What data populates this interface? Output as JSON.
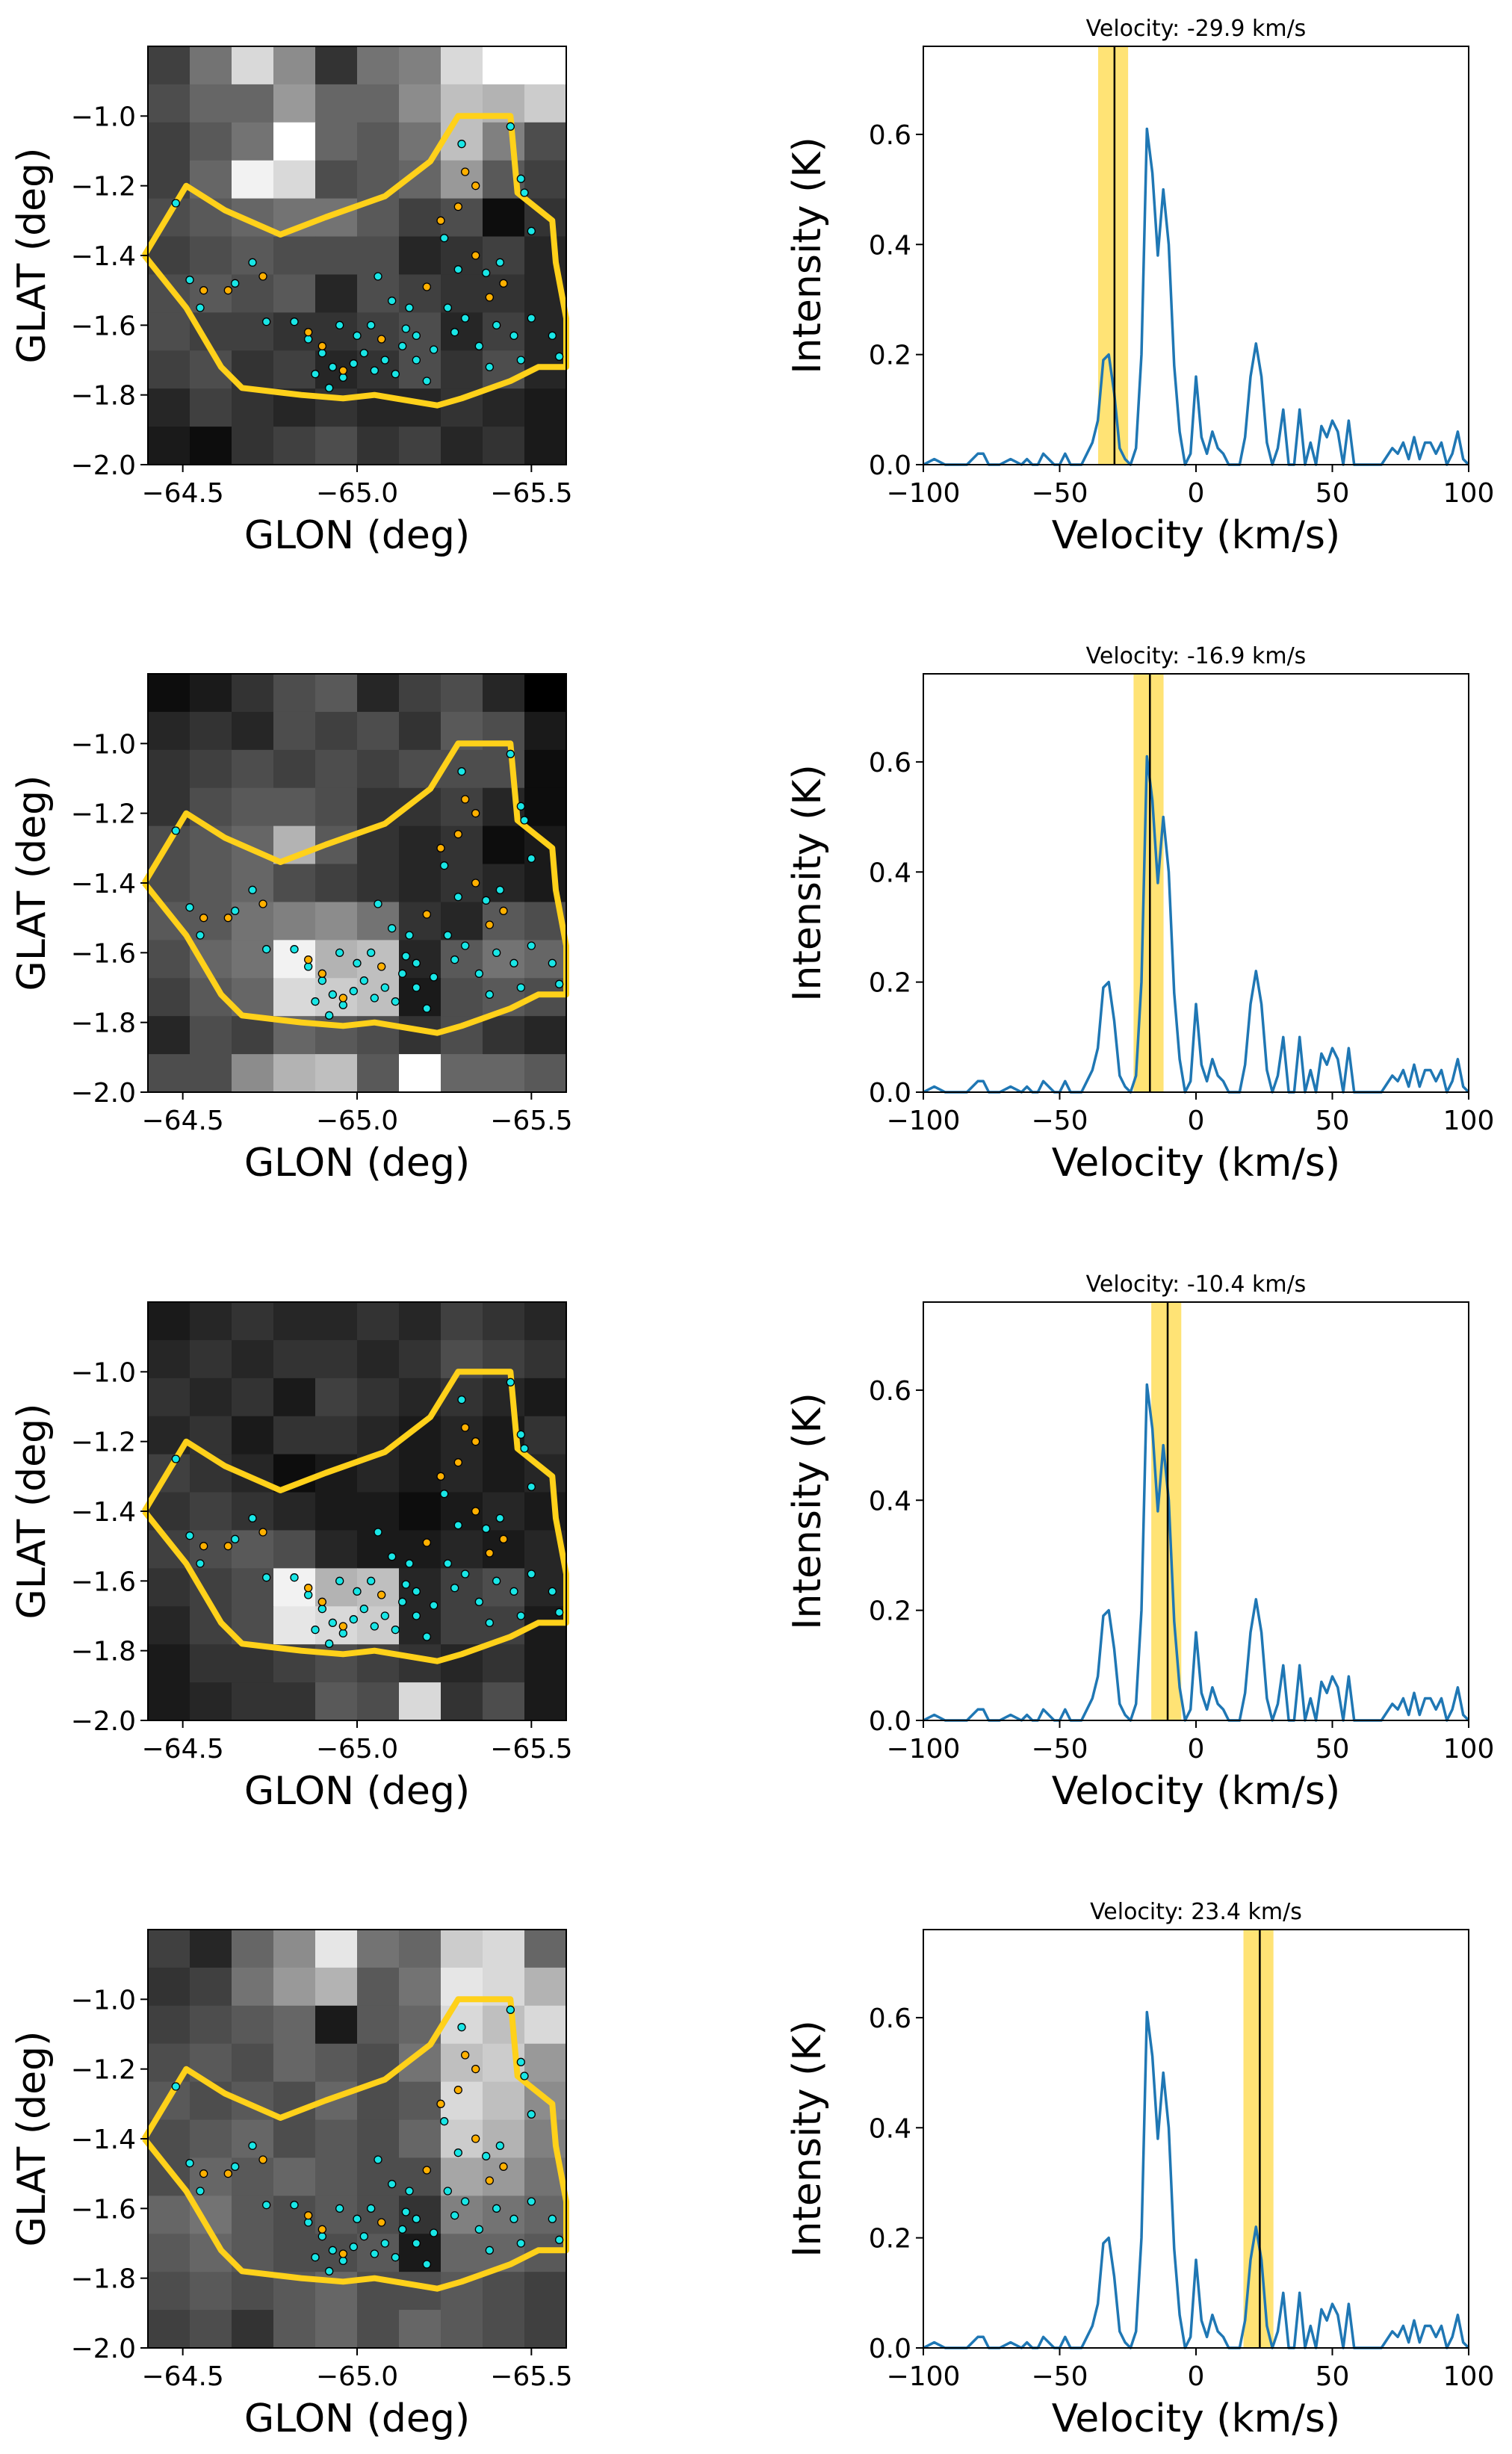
{
  "colors": {
    "spectrum_line": "#1f77b4",
    "velocity_band": "#ffe066",
    "velocity_line": "#000000",
    "contour": "#ffd11a",
    "source_cyan": "#19e6e6",
    "source_orange": "#ffb000",
    "source_edge": "#000000"
  },
  "chart_data": [
    {
      "type": "heatmap",
      "panel": "map",
      "xlabel": "GLON (deg)",
      "ylabel": "GLAT (deg)",
      "xlim": [
        -64.4,
        -65.6
      ],
      "ylim": [
        -2.0,
        -0.8
      ],
      "xticks": [
        -64.5,
        -65.0,
        -65.5
      ],
      "xtick_labels": [
        "−64.5",
        "−65.0",
        "−65.5"
      ],
      "yticks": [
        -1.0,
        -1.2,
        -1.4,
        -1.6,
        -1.8,
        -2.0
      ],
      "ytick_labels": [
        "−1.0",
        "−1.2",
        "−1.4",
        "−1.6",
        "−1.8",
        "−2.0"
      ],
      "grid": [
        [
          0.25,
          0.45,
          0.85,
          0.55,
          0.2,
          0.45,
          0.5,
          0.85,
          1.0,
          1.0
        ],
        [
          0.3,
          0.4,
          0.4,
          0.6,
          0.4,
          0.4,
          0.55,
          0.75,
          0.7,
          0.8
        ],
        [
          0.25,
          0.35,
          0.45,
          1.0,
          0.4,
          0.35,
          0.45,
          0.75,
          0.5,
          0.3
        ],
        [
          0.25,
          0.4,
          0.95,
          0.85,
          0.3,
          0.35,
          0.4,
          0.6,
          0.35,
          0.25
        ],
        [
          0.3,
          0.35,
          0.4,
          0.45,
          0.45,
          0.35,
          0.25,
          0.3,
          0.05,
          0.2
        ],
        [
          0.25,
          0.3,
          0.35,
          0.3,
          0.3,
          0.3,
          0.15,
          0.2,
          0.25,
          0.15
        ],
        [
          0.3,
          0.35,
          0.3,
          0.35,
          0.15,
          0.3,
          0.25,
          0.2,
          0.2,
          0.15
        ],
        [
          0.3,
          0.25,
          0.25,
          0.2,
          0.2,
          0.25,
          0.3,
          0.15,
          0.25,
          0.15
        ],
        [
          0.25,
          0.3,
          0.2,
          0.25,
          0.15,
          0.2,
          0.3,
          0.2,
          0.3,
          0.15
        ],
        [
          0.15,
          0.25,
          0.2,
          0.15,
          0.2,
          0.15,
          0.15,
          0.2,
          0.15,
          0.1
        ],
        [
          0.1,
          0.05,
          0.2,
          0.25,
          0.3,
          0.2,
          0.25,
          0.15,
          0.2,
          0.1
        ]
      ]
    },
    {
      "type": "line",
      "panel": "spectrum",
      "title": "Velocity: -29.9 km/s",
      "velocity": -29.9,
      "band": [
        -35.9,
        -24.9
      ],
      "xlabel": "Velocity (km/s)",
      "ylabel": "Intensity (K)",
      "xlim": [
        -100,
        100
      ],
      "ylim": [
        0,
        0.76
      ],
      "xticks": [
        -100,
        -50,
        0,
        50,
        100
      ],
      "xtick_labels": [
        "−100",
        "−50",
        "0",
        "50",
        "100"
      ],
      "yticks": [
        0.0,
        0.2,
        0.4,
        0.6
      ],
      "ytick_labels": [
        "0.0",
        "0.2",
        "0.4",
        "0.6"
      ]
    },
    {
      "type": "heatmap",
      "panel": "map",
      "xlabel": "GLON (deg)",
      "ylabel": "GLAT (deg)",
      "xlim": [
        -64.4,
        -65.6
      ],
      "ylim": [
        -2.0,
        -0.8
      ],
      "xticks": [
        -64.5,
        -65.0,
        -65.5
      ],
      "xtick_labels": [
        "−64.5",
        "−65.0",
        "−65.5"
      ],
      "yticks": [
        -1.0,
        -1.2,
        -1.4,
        -1.6,
        -1.8,
        -2.0
      ],
      "ytick_labels": [
        "−1.0",
        "−1.2",
        "−1.4",
        "−1.6",
        "−1.8",
        "−2.0"
      ],
      "grid": [
        [
          0.05,
          0.1,
          0.2,
          0.3,
          0.35,
          0.15,
          0.25,
          0.3,
          0.15,
          0.0
        ],
        [
          0.15,
          0.2,
          0.15,
          0.3,
          0.25,
          0.3,
          0.2,
          0.35,
          0.3,
          0.1
        ],
        [
          0.2,
          0.25,
          0.3,
          0.25,
          0.3,
          0.25,
          0.3,
          0.3,
          0.3,
          0.05
        ],
        [
          0.2,
          0.3,
          0.35,
          0.35,
          0.3,
          0.2,
          0.2,
          0.25,
          0.15,
          0.05
        ],
        [
          0.3,
          0.35,
          0.4,
          0.7,
          0.35,
          0.2,
          0.15,
          0.2,
          0.05,
          0.1
        ],
        [
          0.3,
          0.35,
          0.4,
          0.3,
          0.25,
          0.2,
          0.15,
          0.2,
          0.15,
          0.1
        ],
        [
          0.35,
          0.35,
          0.45,
          0.5,
          0.55,
          0.45,
          0.2,
          0.15,
          0.35,
          0.3
        ],
        [
          0.3,
          0.4,
          0.45,
          0.95,
          0.7,
          0.75,
          0.15,
          0.35,
          0.45,
          0.4
        ],
        [
          0.25,
          0.35,
          0.4,
          0.85,
          0.8,
          0.75,
          0.1,
          0.3,
          0.35,
          0.3
        ],
        [
          0.15,
          0.3,
          0.25,
          0.4,
          0.35,
          0.3,
          0.2,
          0.3,
          0.2,
          0.15
        ],
        [
          0.3,
          0.3,
          0.55,
          0.7,
          0.75,
          0.35,
          1.0,
          0.4,
          0.4,
          0.35
        ]
      ]
    },
    {
      "type": "line",
      "panel": "spectrum",
      "title": "Velocity: -16.9 km/s",
      "velocity": -16.9,
      "band": [
        -22.9,
        -11.9
      ],
      "xlabel": "Velocity (km/s)",
      "ylabel": "Intensity (K)",
      "xlim": [
        -100,
        100
      ],
      "ylim": [
        0,
        0.76
      ],
      "xticks": [
        -100,
        -50,
        0,
        50,
        100
      ],
      "xtick_labels": [
        "−100",
        "−50",
        "0",
        "50",
        "100"
      ],
      "yticks": [
        0.0,
        0.2,
        0.4,
        0.6
      ],
      "ytick_labels": [
        "0.0",
        "0.2",
        "0.4",
        "0.6"
      ]
    },
    {
      "type": "heatmap",
      "panel": "map",
      "xlabel": "GLON (deg)",
      "ylabel": "GLAT (deg)",
      "xlim": [
        -64.4,
        -65.6
      ],
      "ylim": [
        -2.0,
        -0.8
      ],
      "xticks": [
        -64.5,
        -65.0,
        -65.5
      ],
      "xtick_labels": [
        "−64.5",
        "−65.0",
        "−65.5"
      ],
      "yticks": [
        -1.0,
        -1.2,
        -1.4,
        -1.6,
        -1.8,
        -2.0
      ],
      "ytick_labels": [
        "−1.0",
        "−1.2",
        "−1.4",
        "−1.6",
        "−1.8",
        "−2.0"
      ],
      "grid": [
        [
          0.1,
          0.15,
          0.2,
          0.15,
          0.15,
          0.2,
          0.15,
          0.25,
          0.2,
          0.15
        ],
        [
          0.15,
          0.2,
          0.15,
          0.2,
          0.2,
          0.15,
          0.2,
          0.3,
          0.25,
          0.2
        ],
        [
          0.2,
          0.15,
          0.2,
          0.1,
          0.25,
          0.2,
          0.15,
          0.2,
          0.15,
          0.1
        ],
        [
          0.15,
          0.2,
          0.1,
          0.2,
          0.2,
          0.15,
          0.1,
          0.15,
          0.1,
          0.2
        ],
        [
          0.25,
          0.2,
          0.15,
          0.05,
          0.1,
          0.15,
          0.1,
          0.15,
          0.1,
          0.15
        ],
        [
          0.2,
          0.25,
          0.2,
          0.15,
          0.1,
          0.1,
          0.05,
          0.1,
          0.15,
          0.1
        ],
        [
          0.25,
          0.3,
          0.35,
          0.3,
          0.15,
          0.1,
          0.1,
          0.15,
          0.1,
          0.15
        ],
        [
          0.2,
          0.25,
          0.3,
          0.95,
          0.7,
          0.75,
          0.15,
          0.25,
          0.3,
          0.15
        ],
        [
          0.15,
          0.25,
          0.3,
          0.9,
          0.85,
          0.8,
          0.15,
          0.25,
          0.25,
          0.1
        ],
        [
          0.1,
          0.2,
          0.2,
          0.25,
          0.3,
          0.25,
          0.2,
          0.15,
          0.2,
          0.1
        ],
        [
          0.1,
          0.15,
          0.2,
          0.2,
          0.35,
          0.3,
          0.85,
          0.2,
          0.3,
          0.1
        ]
      ]
    },
    {
      "type": "line",
      "panel": "spectrum",
      "title": "Velocity: -10.4 km/s",
      "velocity": -10.4,
      "band": [
        -16.4,
        -5.4
      ],
      "xlabel": "Velocity (km/s)",
      "ylabel": "Intensity (K)",
      "xlim": [
        -100,
        100
      ],
      "ylim": [
        0,
        0.76
      ],
      "xticks": [
        -100,
        -50,
        0,
        50,
        100
      ],
      "xtick_labels": [
        "−100",
        "−50",
        "0",
        "50",
        "100"
      ],
      "yticks": [
        0.0,
        0.2,
        0.4,
        0.6
      ],
      "ytick_labels": [
        "0.0",
        "0.2",
        "0.4",
        "0.6"
      ]
    },
    {
      "type": "heatmap",
      "panel": "map",
      "xlabel": "GLON (deg)",
      "ylabel": "GLAT (deg)",
      "xlim": [
        -64.4,
        -65.6
      ],
      "ylim": [
        -2.0,
        -0.8
      ],
      "xticks": [
        -64.5,
        -65.0,
        -65.5
      ],
      "xtick_labels": [
        "−64.5",
        "−65.0",
        "−65.5"
      ],
      "yticks": [
        -1.0,
        -1.2,
        -1.4,
        -1.6,
        -1.8,
        -2.0
      ],
      "ytick_labels": [
        "−1.0",
        "−1.2",
        "−1.4",
        "−1.6",
        "−1.8",
        "−2.0"
      ],
      "grid": [
        [
          0.25,
          0.15,
          0.4,
          0.55,
          0.9,
          0.45,
          0.4,
          0.8,
          0.85,
          0.4
        ],
        [
          0.2,
          0.25,
          0.45,
          0.6,
          0.7,
          0.35,
          0.45,
          0.9,
          0.85,
          0.7
        ],
        [
          0.25,
          0.3,
          0.35,
          0.4,
          0.1,
          0.35,
          0.4,
          0.85,
          0.75,
          0.85
        ],
        [
          0.3,
          0.35,
          0.3,
          0.4,
          0.35,
          0.3,
          0.45,
          0.75,
          0.8,
          0.6
        ],
        [
          0.35,
          0.3,
          0.35,
          0.3,
          0.4,
          0.3,
          0.35,
          0.85,
          0.75,
          0.55
        ],
        [
          0.3,
          0.35,
          0.4,
          0.3,
          0.35,
          0.3,
          0.4,
          0.8,
          0.7,
          0.5
        ],
        [
          0.3,
          0.4,
          0.35,
          0.4,
          0.35,
          0.3,
          0.3,
          0.65,
          0.6,
          0.45
        ],
        [
          0.4,
          0.45,
          0.35,
          0.3,
          0.35,
          0.3,
          0.2,
          0.5,
          0.45,
          0.4
        ],
        [
          0.35,
          0.4,
          0.35,
          0.3,
          0.3,
          0.35,
          0.1,
          0.4,
          0.4,
          0.35
        ],
        [
          0.3,
          0.35,
          0.3,
          0.35,
          0.4,
          0.3,
          0.3,
          0.35,
          0.3,
          0.25
        ],
        [
          0.25,
          0.3,
          0.2,
          0.35,
          0.4,
          0.3,
          0.4,
          0.35,
          0.3,
          0.25
        ]
      ]
    },
    {
      "type": "line",
      "panel": "spectrum",
      "title": "Velocity: 23.4 km/s",
      "velocity": 23.4,
      "band": [
        17.4,
        28.4
      ],
      "xlabel": "Velocity (km/s)",
      "ylabel": "Intensity (K)",
      "xlim": [
        -100,
        100
      ],
      "ylim": [
        0,
        0.76
      ],
      "xticks": [
        -100,
        -50,
        0,
        50,
        100
      ],
      "xtick_labels": [
        "−100",
        "−50",
        "0",
        "50",
        "100"
      ],
      "yticks": [
        0.0,
        0.2,
        0.4,
        0.6
      ],
      "ytick_labels": [
        "0.0",
        "0.2",
        "0.4",
        "0.6"
      ]
    }
  ],
  "shared": {
    "contour_lonlat": [
      [
        -64.39,
        -1.4
      ],
      [
        -64.51,
        -1.2
      ],
      [
        -64.62,
        -1.27
      ],
      [
        -64.78,
        -1.34
      ],
      [
        -64.91,
        -1.29
      ],
      [
        -65.08,
        -1.23
      ],
      [
        -65.21,
        -1.13
      ],
      [
        -65.29,
        -1.0
      ],
      [
        -65.44,
        -1.0
      ],
      [
        -65.46,
        -1.22
      ],
      [
        -65.56,
        -1.3
      ],
      [
        -65.57,
        -1.42
      ],
      [
        -65.6,
        -1.58
      ],
      [
        -65.6,
        -1.72
      ],
      [
        -65.52,
        -1.72
      ],
      [
        -65.44,
        -1.76
      ],
      [
        -65.3,
        -1.81
      ],
      [
        -65.23,
        -1.83
      ],
      [
        -65.05,
        -1.8
      ],
      [
        -64.96,
        -1.81
      ],
      [
        -64.84,
        -1.8
      ],
      [
        -64.67,
        -1.78
      ],
      [
        -64.61,
        -1.72
      ],
      [
        -64.51,
        -1.55
      ],
      [
        -64.39,
        -1.4
      ]
    ],
    "spectrum_v": [
      -100,
      -96,
      -92,
      -88,
      -84,
      -80,
      -78,
      -76,
      -72,
      -68,
      -64,
      -62,
      -60,
      -58,
      -56,
      -52,
      -50,
      -48,
      -46,
      -42,
      -40,
      -38,
      -36,
      -34,
      -32,
      -30,
      -28,
      -26,
      -24,
      -22,
      -20,
      -18,
      -16,
      -14,
      -12,
      -10,
      -8,
      -6,
      -4,
      -2,
      0,
      2,
      4,
      6,
      8,
      10,
      12,
      14,
      16,
      18,
      20,
      22,
      24,
      26,
      28,
      30,
      32,
      34,
      36,
      38,
      40,
      42,
      44,
      46,
      48,
      50,
      52,
      54,
      56,
      58,
      62,
      68,
      72,
      74,
      76,
      78,
      80,
      82,
      84,
      86,
      88,
      90,
      92,
      94,
      96,
      98,
      100
    ],
    "spectrum_i": [
      0.0,
      0.01,
      0.0,
      0.0,
      0.0,
      0.02,
      0.02,
      0.0,
      0.0,
      0.01,
      0.0,
      0.01,
      0.0,
      0.0,
      0.02,
      0.0,
      0.0,
      0.02,
      0.0,
      0.0,
      0.02,
      0.04,
      0.08,
      0.19,
      0.2,
      0.13,
      0.03,
      0.01,
      0.0,
      0.03,
      0.2,
      0.61,
      0.53,
      0.38,
      0.5,
      0.4,
      0.18,
      0.06,
      0.0,
      0.02,
      0.16,
      0.05,
      0.02,
      0.06,
      0.03,
      0.02,
      0.0,
      0.0,
      0.0,
      0.05,
      0.16,
      0.22,
      0.16,
      0.04,
      0.0,
      0.03,
      0.1,
      0.0,
      0.0,
      0.1,
      0.0,
      0.04,
      0.0,
      0.07,
      0.05,
      0.08,
      0.06,
      0.0,
      0.08,
      0.0,
      0.0,
      0.0,
      0.03,
      0.02,
      0.04,
      0.01,
      0.05,
      0.01,
      0.04,
      0.04,
      0.02,
      0.04,
      0.0,
      0.02,
      0.06,
      0.01,
      0.0
    ],
    "cyan_sources": [
      [
        -65.3,
        -1.08
      ],
      [
        -65.44,
        -1.03
      ],
      [
        -65.47,
        -1.18
      ],
      [
        -65.48,
        -1.22
      ],
      [
        -65.5,
        -1.33
      ],
      [
        -65.25,
        -1.35
      ],
      [
        -65.29,
        -1.44
      ],
      [
        -65.37,
        -1.45
      ],
      [
        -65.41,
        -1.42
      ],
      [
        -65.26,
        -1.55
      ],
      [
        -65.31,
        -1.58
      ],
      [
        -65.28,
        -1.62
      ],
      [
        -65.35,
        -1.66
      ],
      [
        -65.4,
        -1.6
      ],
      [
        -65.45,
        -1.63
      ],
      [
        -65.5,
        -1.58
      ],
      [
        -65.47,
        -1.7
      ],
      [
        -65.38,
        -1.72
      ],
      [
        -65.56,
        -1.63
      ],
      [
        -65.58,
        -1.69
      ],
      [
        -65.06,
        -1.46
      ],
      [
        -65.1,
        -1.53
      ],
      [
        -65.15,
        -1.55
      ],
      [
        -64.82,
        -1.59
      ],
      [
        -64.86,
        -1.64
      ],
      [
        -64.9,
        -1.68
      ],
      [
        -64.93,
        -1.72
      ],
      [
        -64.96,
        -1.75
      ],
      [
        -64.99,
        -1.71
      ],
      [
        -65.02,
        -1.68
      ],
      [
        -65.05,
        -1.73
      ],
      [
        -65.08,
        -1.7
      ],
      [
        -65.11,
        -1.74
      ],
      [
        -65.13,
        -1.66
      ],
      [
        -65.17,
        -1.7
      ],
      [
        -65.2,
        -1.76
      ],
      [
        -65.0,
        -1.63
      ],
      [
        -65.04,
        -1.6
      ],
      [
        -64.95,
        -1.6
      ],
      [
        -64.88,
        -1.74
      ],
      [
        -64.92,
        -1.78
      ],
      [
        -65.14,
        -1.61
      ],
      [
        -65.17,
        -1.63
      ],
      [
        -65.22,
        -1.67
      ],
      [
        -64.55,
        -1.55
      ],
      [
        -64.52,
        -1.47
      ],
      [
        -64.74,
        -1.59
      ],
      [
        -64.7,
        -1.42
      ],
      [
        -64.65,
        -1.48
      ],
      [
        -64.48,
        -1.25
      ]
    ],
    "orange_sources": [
      [
        -65.31,
        -1.16
      ],
      [
        -65.34,
        -1.2
      ],
      [
        -65.29,
        -1.26
      ],
      [
        -65.38,
        -1.52
      ],
      [
        -65.42,
        -1.48
      ],
      [
        -65.24,
        -1.3
      ],
      [
        -64.86,
        -1.62
      ],
      [
        -64.9,
        -1.66
      ],
      [
        -64.96,
        -1.73
      ],
      [
        -65.07,
        -1.64
      ],
      [
        -64.63,
        -1.5
      ],
      [
        -64.56,
        -1.5
      ],
      [
        -64.73,
        -1.46
      ],
      [
        -65.2,
        -1.49
      ],
      [
        -65.34,
        -1.4
      ]
    ]
  }
}
